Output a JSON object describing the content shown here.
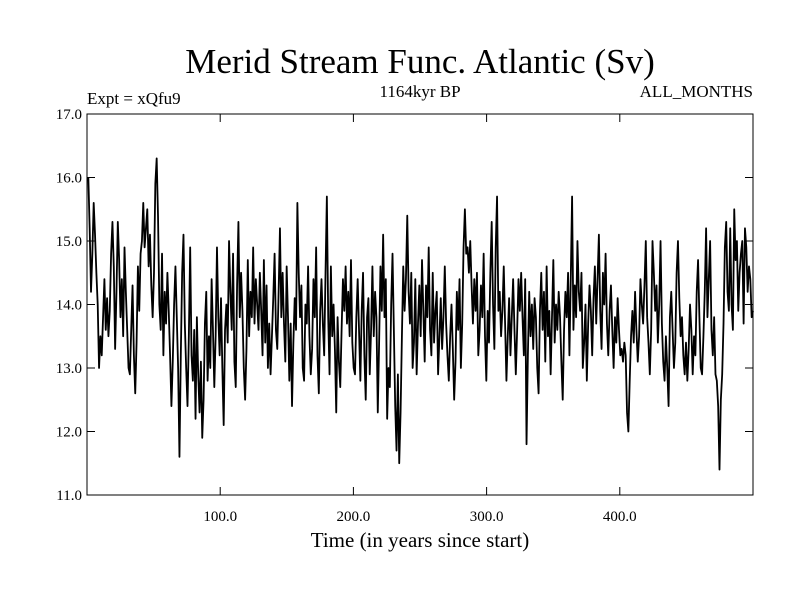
{
  "chart_data": {
    "type": "line",
    "title": "Merid Stream Func. Atlantic (Sv)",
    "subtitle_left": "Expt = xQfu9",
    "subtitle_center": "1164kyr BP",
    "subtitle_right": "ALL_MONTHS",
    "xlabel": "Time (in years since start)",
    "ylabel": "",
    "xlim": [
      0,
      500
    ],
    "ylim": [
      11.0,
      17.0
    ],
    "x_ticks": [
      100,
      200,
      300,
      400
    ],
    "x_tick_labels": [
      "100.0",
      "200.0",
      "300.0",
      "400.0"
    ],
    "y_ticks": [
      11,
      12,
      13,
      14,
      15,
      16,
      17
    ],
    "y_tick_labels": [
      "11.0",
      "12.0",
      "13.0",
      "14.0",
      "15.0",
      "16.0",
      "17.0"
    ],
    "grid": false,
    "x_start": 1,
    "x_step": 1,
    "series": [
      {
        "name": "Merid Stream Func. Atlantic",
        "color": "#000000",
        "values": [
          16.0,
          15.2,
          14.2,
          14.8,
          15.6,
          15.1,
          14.5,
          14.0,
          13.0,
          13.5,
          13.2,
          13.8,
          14.4,
          13.6,
          14.1,
          13.5,
          13.9,
          14.8,
          15.3,
          14.6,
          13.3,
          14.2,
          15.3,
          14.7,
          13.8,
          14.4,
          13.5,
          14.9,
          14.2,
          13.6,
          13.0,
          12.9,
          13.6,
          14.3,
          13.2,
          12.6,
          13.4,
          14.6,
          13.9,
          14.8,
          15.0,
          15.6,
          14.9,
          15.2,
          15.5,
          14.6,
          15.1,
          14.3,
          13.8,
          14.5,
          15.9,
          16.3,
          15.4,
          14.0,
          13.6,
          14.8,
          13.2,
          14.2,
          13.7,
          14.5,
          13.9,
          13.2,
          12.4,
          13.1,
          14.0,
          14.6,
          13.8,
          13.0,
          11.6,
          13.2,
          14.5,
          15.1,
          13.7,
          13.0,
          12.4,
          13.5,
          14.9,
          13.2,
          12.8,
          13.6,
          12.2,
          13.8,
          12.9,
          12.3,
          13.1,
          11.9,
          12.5,
          13.7,
          14.2,
          12.8,
          13.5,
          13.0,
          14.4,
          13.6,
          12.7,
          13.5,
          14.9,
          13.8,
          13.2,
          14.1,
          13.0,
          12.1,
          13.6,
          14.0,
          13.4,
          15.0,
          14.2,
          13.6,
          14.8,
          13.1,
          12.7,
          14.3,
          15.3,
          13.8,
          14.5,
          13.9,
          13.0,
          12.5,
          13.3,
          14.7,
          13.5,
          14.2,
          13.8,
          14.9,
          13.7,
          14.4,
          14.0,
          13.6,
          14.5,
          13.9,
          13.2,
          14.7,
          13.4,
          14.3,
          13.0,
          13.7,
          12.9,
          13.5,
          14.1,
          14.8,
          13.6,
          13.3,
          14.2,
          15.2,
          13.8,
          14.5,
          13.7,
          13.1,
          14.6,
          13.8,
          12.8,
          13.7,
          12.4,
          13.4,
          14.1,
          13.6,
          15.6,
          14.5,
          13.8,
          14.3,
          13.0,
          12.8,
          14.0,
          13.7,
          14.6,
          13.5,
          12.9,
          13.3,
          14.4,
          13.8,
          14.9,
          13.2,
          12.6,
          13.9,
          14.4,
          13.7,
          13.2,
          14.5,
          15.7,
          13.8,
          12.9,
          14.6,
          13.5,
          14.0,
          13.3,
          12.3,
          13.8,
          13.1,
          12.7,
          13.6,
          14.4,
          13.9,
          14.6,
          13.7,
          14.2,
          13.5,
          14.7,
          13.4,
          13.0,
          12.9,
          13.8,
          14.4,
          13.6,
          12.8,
          13.9,
          14.5,
          13.2,
          12.5,
          13.8,
          14.1,
          12.9,
          13.6,
          14.6,
          13.5,
          14.2,
          13.8,
          12.3,
          13.4,
          14.6,
          13.9,
          15.1,
          13.8,
          14.4,
          12.2,
          13.0,
          12.7,
          14.0,
          14.8,
          13.6,
          12.4,
          11.7,
          12.9,
          11.5,
          12.3,
          13.5,
          14.6,
          13.9,
          14.4,
          15.4,
          14.2,
          13.7,
          14.5,
          13.0,
          13.4,
          14.4,
          12.9,
          13.7,
          14.3,
          13.5,
          14.7,
          13.9,
          13.1,
          14.3,
          13.8,
          14.9,
          13.6,
          13.2,
          14.5,
          13.4,
          13.9,
          14.2,
          12.9,
          13.5,
          14.1,
          13.3,
          13.8,
          14.6,
          13.7,
          13.2,
          12.8,
          13.5,
          14.0,
          13.3,
          12.5,
          13.1,
          14.2,
          13.6,
          14.4,
          13.0,
          13.7,
          14.9,
          15.5,
          14.8,
          14.9,
          14.5,
          15.0,
          14.3,
          13.7,
          14.4,
          13.9,
          14.5,
          13.2,
          13.6,
          14.3,
          13.8,
          14.8,
          13.5,
          12.8,
          13.9,
          13.4,
          14.5,
          15.3,
          14.0,
          13.3,
          14.9,
          15.7,
          13.9,
          14.2,
          13.5,
          13.9,
          14.6,
          13.7,
          12.8,
          13.5,
          14.1,
          13.2,
          13.8,
          14.4,
          13.6,
          12.9,
          13.6,
          14.4,
          13.9,
          14.5,
          13.8,
          13.2,
          14.4,
          11.8,
          13.2,
          14.2,
          13.5,
          14.0,
          13.3,
          14.1,
          13.8,
          13.0,
          12.6,
          13.9,
          14.5,
          13.6,
          14.2,
          13.1,
          14.6,
          13.5,
          13.9,
          12.9,
          13.8,
          14.7,
          13.4,
          14.0,
          13.6,
          14.2,
          13.8,
          13.1,
          12.5,
          13.6,
          14.2,
          13.8,
          14.5,
          13.2,
          14.4,
          15.7,
          13.6,
          14.3,
          13.8,
          15.0,
          14.2,
          13.9,
          14.5,
          13.0,
          13.4,
          14.0,
          12.8,
          13.7,
          14.3,
          13.9,
          13.2,
          14.1,
          14.6,
          13.7,
          14.4,
          15.1,
          13.9,
          13.3,
          14.5,
          14.0,
          14.8,
          13.7,
          13.2,
          13.9,
          14.3,
          13.6,
          13.0,
          13.8,
          13.4,
          14.1,
          13.6,
          13.2,
          13.3,
          13.1,
          13.4,
          13.2,
          12.3,
          12.0,
          12.8,
          13.5,
          13.9,
          13.4,
          14.2,
          13.6,
          13.1,
          13.5,
          14.4,
          14.0,
          13.7,
          14.3,
          15.0,
          13.8,
          13.4,
          12.9,
          13.6,
          15.0,
          14.5,
          13.9,
          14.3,
          13.4,
          14.0,
          15.0,
          13.7,
          13.1,
          12.8,
          13.5,
          13.0,
          12.4,
          13.8,
          14.2,
          13.6,
          13.0,
          13.4,
          14.5,
          15.0,
          14.1,
          13.5,
          13.8,
          13.2,
          12.9,
          13.4,
          12.8,
          13.3,
          14.0,
          13.6,
          12.9,
          13.5,
          13.2,
          14.2,
          14.7,
          13.8,
          13.0,
          12.9,
          13.5,
          14.2,
          15.2,
          13.8,
          14.4,
          15.0,
          13.6,
          13.2,
          13.8,
          12.9,
          12.8,
          12.4,
          11.4,
          12.5,
          12.9,
          13.7,
          14.9,
          15.3,
          14.2,
          13.9,
          15.2,
          14.0,
          13.6,
          15.5,
          14.7,
          15.0,
          13.9,
          14.5,
          14.8,
          15.0,
          13.7,
          15.2,
          14.9,
          14.2,
          14.6,
          14.4,
          13.8,
          13.9
        ]
      }
    ]
  }
}
